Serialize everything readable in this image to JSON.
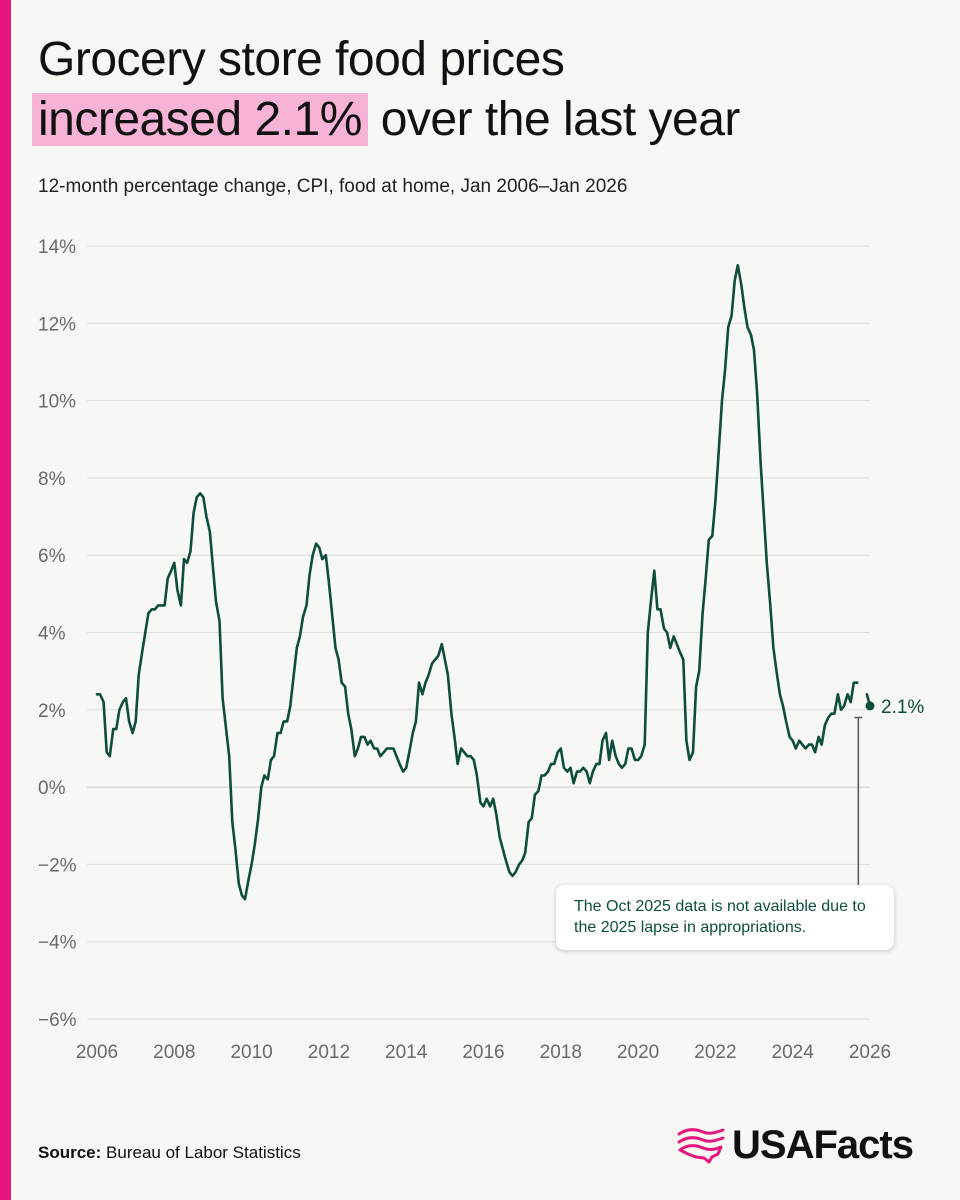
{
  "accent_color": "#e8177f",
  "highlight_color": "#f6b3d6",
  "line_color": "#0e4d3c",
  "header": {
    "title_line1": "Grocery store food prices",
    "title_highlight": "increased 2.1%",
    "title_rest": " over the last year",
    "subtitle": "12-month percentage change, CPI, food at home, Jan 2006–Jan 2026"
  },
  "annotation": {
    "end_label": "2.1%",
    "note": "The Oct 2025 data is not available due to the 2025 lapse in appropriations."
  },
  "footer": {
    "source_label": "Source:",
    "source_text": "Bureau of Labor Statistics",
    "logo_text": "USAFacts",
    "logo_icon": "usa-flag-map-icon"
  },
  "chart_data": {
    "type": "line",
    "title": "Grocery store food prices increased 2.1% over the last year",
    "subtitle": "12-month percentage change, CPI, food at home, Jan 2006–Jan 2026",
    "xlabel": "",
    "ylabel": "",
    "xlim": [
      2006,
      2026
    ],
    "ylim": [
      -6,
      14
    ],
    "y_ticks": [
      -6,
      -4,
      -2,
      0,
      2,
      4,
      6,
      8,
      10,
      12,
      14
    ],
    "y_tick_labels": [
      "−6%",
      "−4%",
      "−2%",
      "0%",
      "2%",
      "4%",
      "6%",
      "8%",
      "10%",
      "12%",
      "14%"
    ],
    "x_ticks": [
      2006,
      2008,
      2010,
      2012,
      2014,
      2016,
      2018,
      2020,
      2022,
      2024,
      2026
    ],
    "x_tick_labels": [
      "2006",
      "2008",
      "2010",
      "2012",
      "2014",
      "2016",
      "2018",
      "2020",
      "2022",
      "2024",
      "2026"
    ],
    "grid": true,
    "legend": "none",
    "series": [
      {
        "name": "",
        "segments": [
          {
            "x": [
              2006.0,
              2006.08,
              2006.17,
              2006.25,
              2006.33,
              2006.42,
              2006.5,
              2006.58,
              2006.67,
              2006.75,
              2006.83,
              2006.92,
              2007.0,
              2007.08,
              2007.17,
              2007.25,
              2007.33,
              2007.42,
              2007.5,
              2007.58,
              2007.67,
              2007.75,
              2007.83,
              2007.92,
              2008.0,
              2008.08,
              2008.17,
              2008.25,
              2008.33,
              2008.42,
              2008.5,
              2008.58,
              2008.67,
              2008.75,
              2008.83,
              2008.92,
              2009.0,
              2009.08,
              2009.17,
              2009.25,
              2009.33,
              2009.42,
              2009.5,
              2009.58,
              2009.67,
              2009.75,
              2009.83,
              2009.92,
              2010.0,
              2010.08,
              2010.17,
              2010.25,
              2010.33,
              2010.42,
              2010.5,
              2010.58,
              2010.67,
              2010.75,
              2010.83,
              2010.92,
              2011.0,
              2011.08,
              2011.17,
              2011.25,
              2011.33,
              2011.42,
              2011.5,
              2011.58,
              2011.67,
              2011.75,
              2011.83,
              2011.92,
              2012.0,
              2012.08,
              2012.17,
              2012.25,
              2012.33,
              2012.42,
              2012.5,
              2012.58,
              2012.67,
              2012.75,
              2012.83,
              2012.92,
              2013.0,
              2013.08,
              2013.17,
              2013.25,
              2013.33,
              2013.42,
              2013.5,
              2013.58,
              2013.67,
              2013.75,
              2013.83,
              2013.92,
              2014.0,
              2014.08,
              2014.17,
              2014.25,
              2014.33,
              2014.42,
              2014.5,
              2014.58,
              2014.67,
              2014.75,
              2014.83,
              2014.92,
              2015.0,
              2015.08,
              2015.17,
              2015.25,
              2015.33,
              2015.42,
              2015.5,
              2015.58,
              2015.67,
              2015.75,
              2015.83,
              2015.92,
              2016.0,
              2016.08,
              2016.17,
              2016.25,
              2016.33,
              2016.42,
              2016.5,
              2016.58,
              2016.67,
              2016.75,
              2016.83,
              2016.92,
              2017.0,
              2017.08,
              2017.17,
              2017.25,
              2017.33,
              2017.42,
              2017.5,
              2017.58,
              2017.67,
              2017.75,
              2017.83,
              2017.92,
              2018.0,
              2018.08,
              2018.17,
              2018.25,
              2018.33,
              2018.42,
              2018.5,
              2018.58,
              2018.67,
              2018.75,
              2018.83,
              2018.92,
              2019.0,
              2019.08,
              2019.17,
              2019.25,
              2019.33,
              2019.42,
              2019.5,
              2019.58,
              2019.67,
              2019.75,
              2019.83,
              2019.92,
              2020.0,
              2020.08,
              2020.17,
              2020.25,
              2020.33,
              2020.42,
              2020.5,
              2020.58,
              2020.67,
              2020.75,
              2020.83,
              2020.92,
              2021.0,
              2021.08,
              2021.17,
              2021.25,
              2021.33,
              2021.42,
              2021.5,
              2021.58,
              2021.67,
              2021.75,
              2021.83,
              2021.92,
              2022.0,
              2022.08,
              2022.17,
              2022.25,
              2022.33,
              2022.42,
              2022.5,
              2022.58,
              2022.67,
              2022.75,
              2022.83,
              2022.92,
              2023.0,
              2023.08,
              2023.17,
              2023.25,
              2023.33,
              2023.42,
              2023.5,
              2023.58,
              2023.67,
              2023.75,
              2023.83,
              2023.92,
              2024.0,
              2024.08,
              2024.17,
              2024.25,
              2024.33,
              2024.42,
              2024.5,
              2024.58,
              2024.67,
              2024.75,
              2024.83,
              2024.92,
              2025.0,
              2025.08,
              2025.17,
              2025.25,
              2025.33,
              2025.42,
              2025.5,
              2025.58,
              2025.67
            ],
            "y": [
              2.4,
              2.4,
              2.2,
              0.9,
              0.8,
              1.5,
              1.5,
              2.0,
              2.2,
              2.3,
              1.7,
              1.4,
              1.7,
              2.9,
              3.5,
              4.0,
              4.5,
              4.6,
              4.6,
              4.7,
              4.7,
              4.7,
              5.4,
              5.6,
              5.8,
              5.1,
              4.7,
              5.9,
              5.8,
              6.1,
              7.1,
              7.5,
              7.6,
              7.5,
              7.0,
              6.6,
              5.7,
              4.8,
              4.3,
              2.3,
              1.6,
              0.8,
              -0.9,
              -1.6,
              -2.5,
              -2.8,
              -2.9,
              -2.4,
              -2.0,
              -1.5,
              -0.8,
              0.0,
              0.3,
              0.2,
              0.7,
              0.8,
              1.4,
              1.4,
              1.7,
              1.7,
              2.1,
              2.8,
              3.6,
              3.9,
              4.4,
              4.7,
              5.5,
              6.0,
              6.3,
              6.2,
              5.9,
              6.0,
              5.3,
              4.5,
              3.6,
              3.3,
              2.7,
              2.6,
              1.9,
              1.5,
              0.8,
              1.0,
              1.3,
              1.3,
              1.1,
              1.2,
              1.0,
              1.0,
              0.8,
              0.9,
              1.0,
              1.0,
              1.0,
              0.8,
              0.6,
              0.4,
              0.5,
              0.9,
              1.4,
              1.7,
              2.7,
              2.4,
              2.7,
              2.9,
              3.2,
              3.3,
              3.4,
              3.7,
              3.3,
              2.9,
              1.9,
              1.3,
              0.6,
              1.0,
              0.9,
              0.8,
              0.8,
              0.7,
              0.3,
              -0.4,
              -0.5,
              -0.3,
              -0.5,
              -0.3,
              -0.7,
              -1.3,
              -1.6,
              -1.9,
              -2.2,
              -2.3,
              -2.2,
              -2.0,
              -1.9,
              -1.7,
              -0.9,
              -0.8,
              -0.2,
              -0.1,
              0.3,
              0.3,
              0.4,
              0.6,
              0.6,
              0.9,
              1.0,
              0.5,
              0.4,
              0.5,
              0.1,
              0.4,
              0.4,
              0.5,
              0.4,
              0.1,
              0.4,
              0.6,
              0.6,
              1.2,
              1.4,
              0.7,
              1.2,
              0.8,
              0.6,
              0.5,
              0.6,
              1.0,
              1.0,
              0.7,
              0.7,
              0.8,
              1.1,
              4.0,
              4.8,
              5.6,
              4.6,
              4.6,
              4.1,
              4.0,
              3.6,
              3.9,
              3.7,
              3.5,
              3.3,
              1.2,
              0.7,
              0.9,
              2.6,
              3.0,
              4.5,
              5.4,
              6.4,
              6.5,
              7.4,
              8.6,
              10.0,
              10.8,
              11.9,
              12.2,
              13.1,
              13.5,
              13.0,
              12.4,
              11.9,
              11.7,
              11.3,
              10.2,
              8.4,
              7.1,
              5.8,
              4.7,
              3.6,
              3.0,
              2.4,
              2.1,
              1.7,
              1.3,
              1.2,
              1.0,
              1.2,
              1.1,
              1.0,
              1.1,
              1.1,
              0.9,
              1.3,
              1.1,
              1.6,
              1.8,
              1.9,
              1.9,
              2.4,
              2.0,
              2.1,
              2.4,
              2.2,
              2.7,
              2.7
            ]
          },
          {
            "x": [
              2025.92,
              2026.0
            ],
            "y": [
              2.4,
              2.1
            ]
          }
        ]
      }
    ],
    "annotations": [
      {
        "text": "2.1%",
        "x": 2026.0,
        "y": 2.1
      },
      {
        "text": "The Oct 2025 data is not available due to the 2025 lapse in appropriations.",
        "x": 2025.75,
        "y": 1.8
      }
    ]
  }
}
